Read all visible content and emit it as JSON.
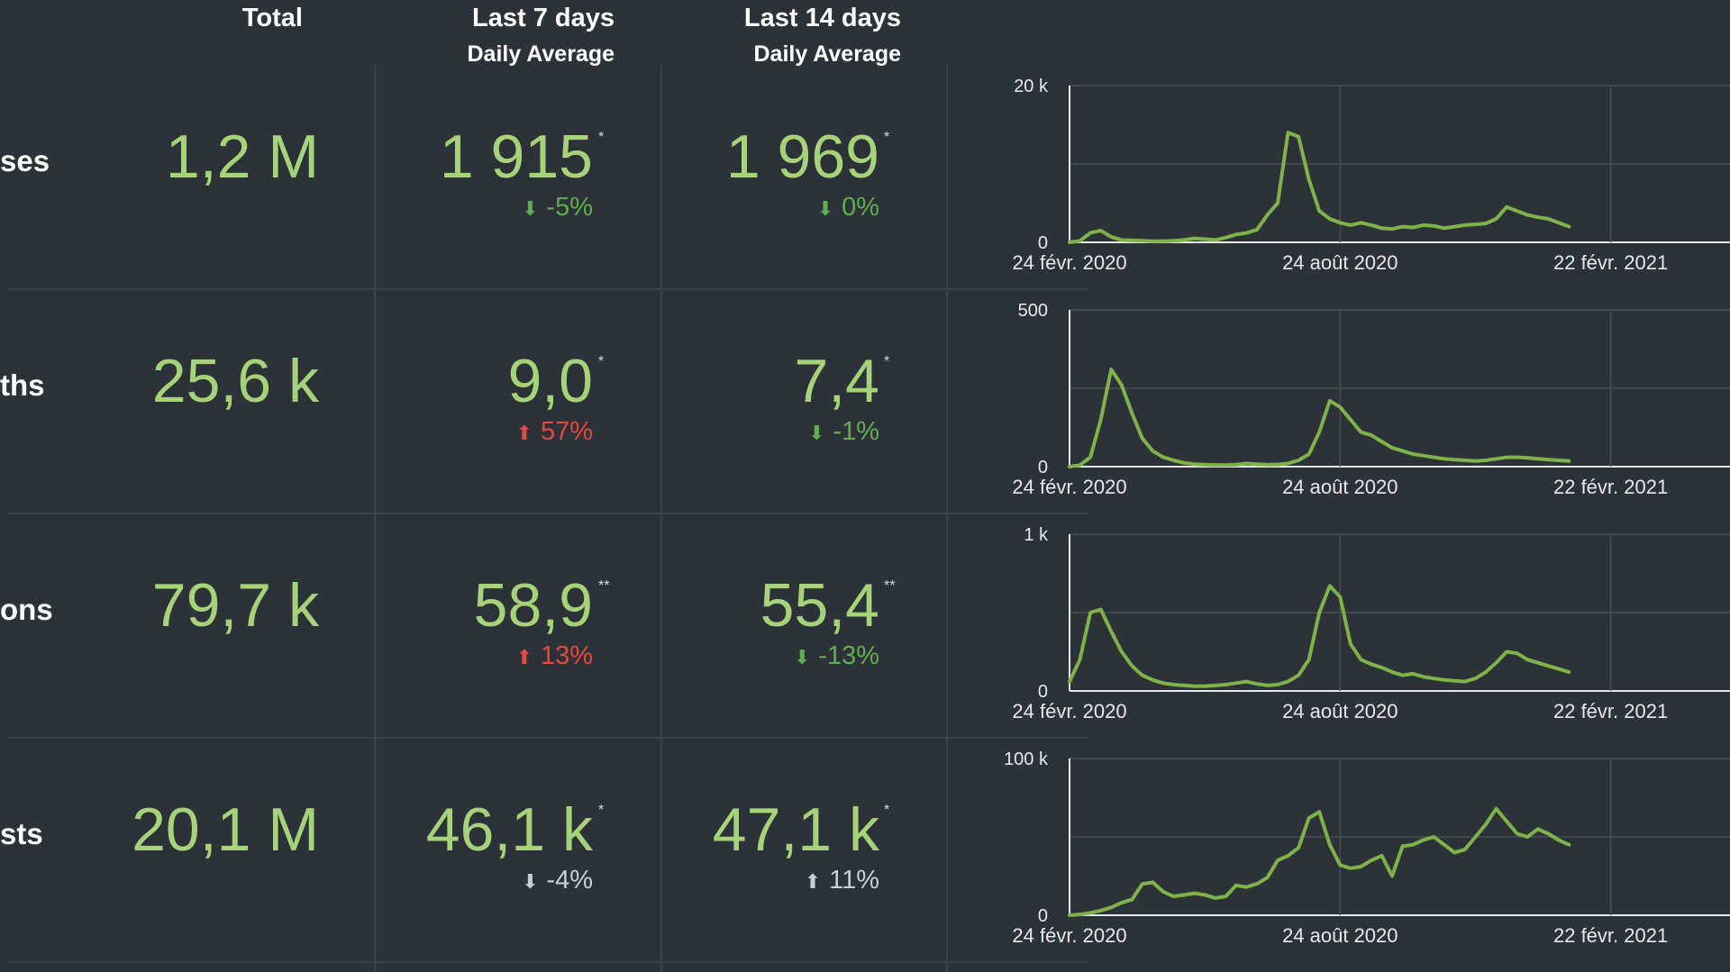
{
  "headers": {
    "total": "Total",
    "last7": "Last 7 days",
    "last7_sub": "Daily Average",
    "last14": "Last 14 days",
    "last14_sub": "Daily Average"
  },
  "rows": [
    {
      "label": "ses",
      "total": "1,2 M",
      "last7": "1 915",
      "last7_star": "*",
      "last7_change": "-5%",
      "last7_dir": "down",
      "last7_color": "green",
      "last14": "1 969",
      "last14_star": "*",
      "last14_change": "0%",
      "last14_dir": "down",
      "last14_color": "green"
    },
    {
      "label": "ths",
      "total": "25,6 k",
      "last7": "9,0",
      "last7_star": "*",
      "last7_change": "57%",
      "last7_dir": "up",
      "last7_color": "red",
      "last14": "7,4",
      "last14_star": "*",
      "last14_change": "-1%",
      "last14_dir": "down",
      "last14_color": "green"
    },
    {
      "label": "ons",
      "total": "79,7 k",
      "last7": "58,9",
      "last7_star": "**",
      "last7_change": "13%",
      "last7_dir": "up",
      "last7_color": "red",
      "last14": "55,4",
      "last14_star": "**",
      "last14_change": "-13%",
      "last14_dir": "down",
      "last14_color": "green"
    },
    {
      "label": "sts",
      "total": "20,1 M",
      "last7": "46,1 k",
      "last7_star": "*",
      "last7_change": "-4%",
      "last7_dir": "down",
      "last7_color": "grey",
      "last14": "47,1 k",
      "last14_star": "*",
      "last14_change": "11%",
      "last14_dir": "up",
      "last14_color": "grey"
    }
  ],
  "icons": {
    "up": "arrow-up-icon",
    "down": "arrow-down-icon"
  },
  "colors": {
    "line": "#7fb34a",
    "value": "#a6d27a",
    "good": "#5fae4f",
    "bad": "#e24a3f",
    "neutral": "#c9ced3"
  },
  "chart_data": [
    {
      "type": "line",
      "x_ticks": [
        "24 févr. 2020",
        "24 août 2020",
        "22 févr. 2021"
      ],
      "ylim": [
        0,
        20000
      ],
      "y_ticks": [
        "0",
        "20 k"
      ],
      "x_grid_positions": [
        0,
        26,
        52
      ],
      "grid": true,
      "values": [
        0,
        200,
        1200,
        1500,
        700,
        300,
        250,
        200,
        150,
        150,
        200,
        300,
        500,
        400,
        300,
        600,
        1000,
        1200,
        1600,
        3500,
        5000,
        14000,
        13500,
        8000,
        4000,
        3000,
        2500,
        2200,
        2500,
        2200,
        1800,
        1700,
        2000,
        1900,
        2200,
        2100,
        1800,
        2000,
        2200,
        2300,
        2400,
        3000,
        4500,
        4000,
        3500,
        3200,
        3000,
        2500,
        2000
      ]
    },
    {
      "type": "line",
      "x_ticks": [
        "24 févr. 2020",
        "24 août 2020",
        "22 févr. 2021"
      ],
      "ylim": [
        0,
        500
      ],
      "y_ticks": [
        "0",
        "500"
      ],
      "x_grid_positions": [
        0,
        26,
        52
      ],
      "grid": true,
      "values": [
        0,
        5,
        30,
        150,
        310,
        260,
        170,
        90,
        50,
        30,
        20,
        12,
        8,
        6,
        5,
        5,
        6,
        10,
        8,
        6,
        7,
        10,
        20,
        40,
        110,
        210,
        190,
        150,
        110,
        100,
        80,
        60,
        50,
        40,
        35,
        30,
        25,
        22,
        20,
        18,
        20,
        25,
        30,
        30,
        28,
        25,
        22,
        20,
        18
      ]
    },
    {
      "type": "line",
      "x_ticks": [
        "24 févr. 2020",
        "24 août 2020",
        "22 févr. 2021"
      ],
      "ylim": [
        0,
        1000
      ],
      "y_ticks": [
        "0",
        "1 k"
      ],
      "x_grid_positions": [
        0,
        26,
        52
      ],
      "grid": true,
      "values": [
        60,
        200,
        500,
        520,
        380,
        250,
        160,
        100,
        70,
        50,
        40,
        35,
        30,
        30,
        35,
        40,
        50,
        60,
        45,
        35,
        40,
        60,
        100,
        200,
        500,
        670,
        600,
        300,
        200,
        170,
        150,
        120,
        100,
        110,
        90,
        80,
        70,
        65,
        60,
        80,
        120,
        180,
        250,
        240,
        200,
        180,
        160,
        140,
        120
      ]
    },
    {
      "type": "line",
      "x_ticks": [
        "24 févr. 2020",
        "24 août 2020",
        "22 févr. 2021"
      ],
      "ylim": [
        0,
        100000
      ],
      "y_ticks": [
        "0",
        "100 k"
      ],
      "x_grid_positions": [
        0,
        26,
        52
      ],
      "grid": true,
      "values": [
        0,
        500,
        1500,
        3000,
        5000,
        8000,
        10000,
        20000,
        21000,
        15000,
        12000,
        13000,
        14000,
        13000,
        11000,
        12000,
        19000,
        18000,
        20000,
        24000,
        35000,
        38000,
        43000,
        62000,
        66000,
        45000,
        32000,
        30000,
        31000,
        35000,
        38000,
        25000,
        44000,
        45000,
        48000,
        50000,
        45000,
        40000,
        42000,
        50000,
        58000,
        68000,
        60000,
        52000,
        50000,
        55000,
        52000,
        48000,
        45000
      ]
    }
  ]
}
